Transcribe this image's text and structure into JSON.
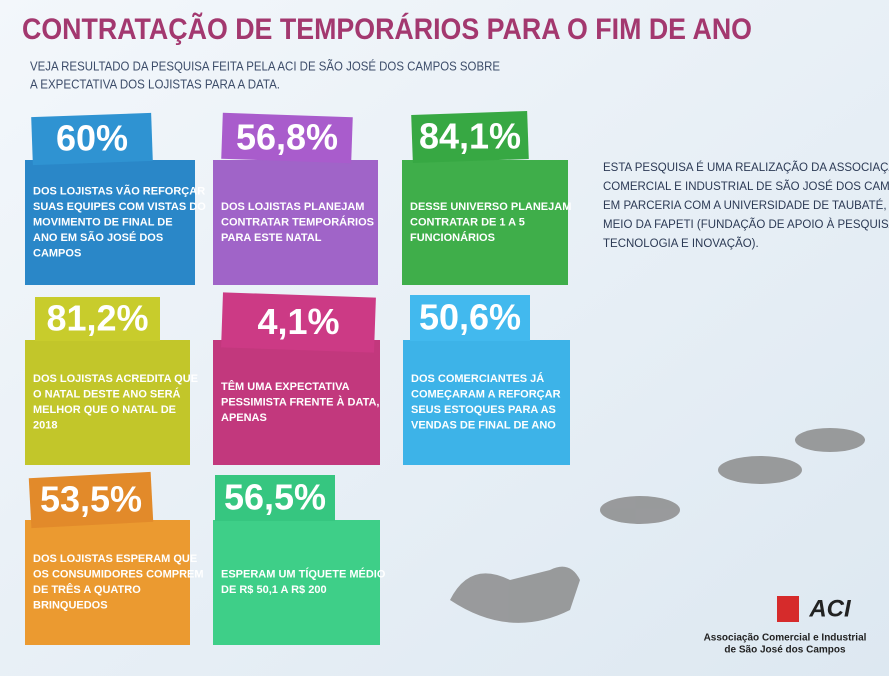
{
  "header": {
    "title": "CONTRATAÇÃO DE TEMPORÁRIOS PARA O FIM DE ANO",
    "subtitle": [
      "VEJA RESULTADO DA PESQUISA FEITA PELA ACI DE SÃO JOSÉ DOS CAMPOS SOBRE",
      "A EXPECTATIVA DOS LOJISTAS PARA A DATA."
    ]
  },
  "cards": [
    {
      "value": "60%",
      "text": [
        "DOS LOJISTAS VÃO REFORÇAR",
        "SUAS EQUIPES COM VISTAS DO",
        "MOVIMENTO DE FINAL DE",
        "ANO EM SÃO JOSÉ DOS",
        "CAMPOS"
      ],
      "color": "#2a87c8",
      "label_color": "#2f93d2"
    },
    {
      "value": "56,8%",
      "text": [
        "DOS LOJISTAS PLANEJAM",
        "CONTRATAR TEMPORÁRIOS",
        "PARA ESTE NATAL"
      ],
      "color": "#a064c8",
      "label_color": "#a95ccc"
    },
    {
      "value": "84,1%",
      "text": [
        "DESSE UNIVERSO PLANEJAM",
        "CONTRATAR DE 1 A 5",
        "FUNCIONÁRIOS"
      ],
      "color": "#3fae4a",
      "label_color": "#37a843"
    },
    {
      "value": "81,2%",
      "text": [
        "DOS LOJISTAS ACREDITA QUE",
        "O NATAL DESTE ANO SERÁ",
        "MELHOR QUE O NATAL DE",
        "2018"
      ],
      "color": "#c2c62a",
      "label_color": "#c8cc2c"
    },
    {
      "value": "4,1%",
      "text": [
        "TÊM UMA EXPECTATIVA",
        "PESSIMISTA FRENTE À DATA,",
        "APENAS"
      ],
      "color": "#c2387d",
      "label_color": "#cc3a85"
    },
    {
      "value": "50,6%",
      "text": [
        "DOS COMERCIANTES JÁ",
        "COMEÇARAM A REFORÇAR",
        "SEUS ESTOQUES PARA AS",
        "VENDAS DE FINAL DE ANO"
      ],
      "color": "#3db3e8",
      "label_color": "#42b9ee"
    },
    {
      "value": "53,5%",
      "text": [
        "DOS LOJISTAS ESPERAM QUE",
        "OS CONSUMIDORES COMPREM",
        "DE TRÊS A QUATRO",
        "BRINQUEDOS"
      ],
      "color": "#eb9a30",
      "label_color": "#e28a2a"
    },
    {
      "value": "56,5%",
      "text": [
        "ESPERAM UM TÍQUETE MÉDIO",
        "DE R$ 50,1 A R$ 200"
      ],
      "color": "#3ecf88",
      "label_color": "#36c680"
    }
  ],
  "note": [
    "ESTA PESQUISA É UMA REALIZAÇÃO DA ASSOCIAÇÃO",
    "COMERCIAL E INDUSTRIAL DE SÃO JOSÉ DOS CAMPOS",
    "EM PARCERIA COM A UNIVERSIDADE DE TAUBATÉ, POR",
    "MEIO DA FAPETI (FUNDAÇÃO DE APOIO À PESQUISA,",
    "TECNOLOGIA E INOVAÇÃO)."
  ],
  "logo": {
    "name": "ACI",
    "caption": [
      "Associação Comercial e Industrial",
      "de São José dos Campos"
    ]
  }
}
